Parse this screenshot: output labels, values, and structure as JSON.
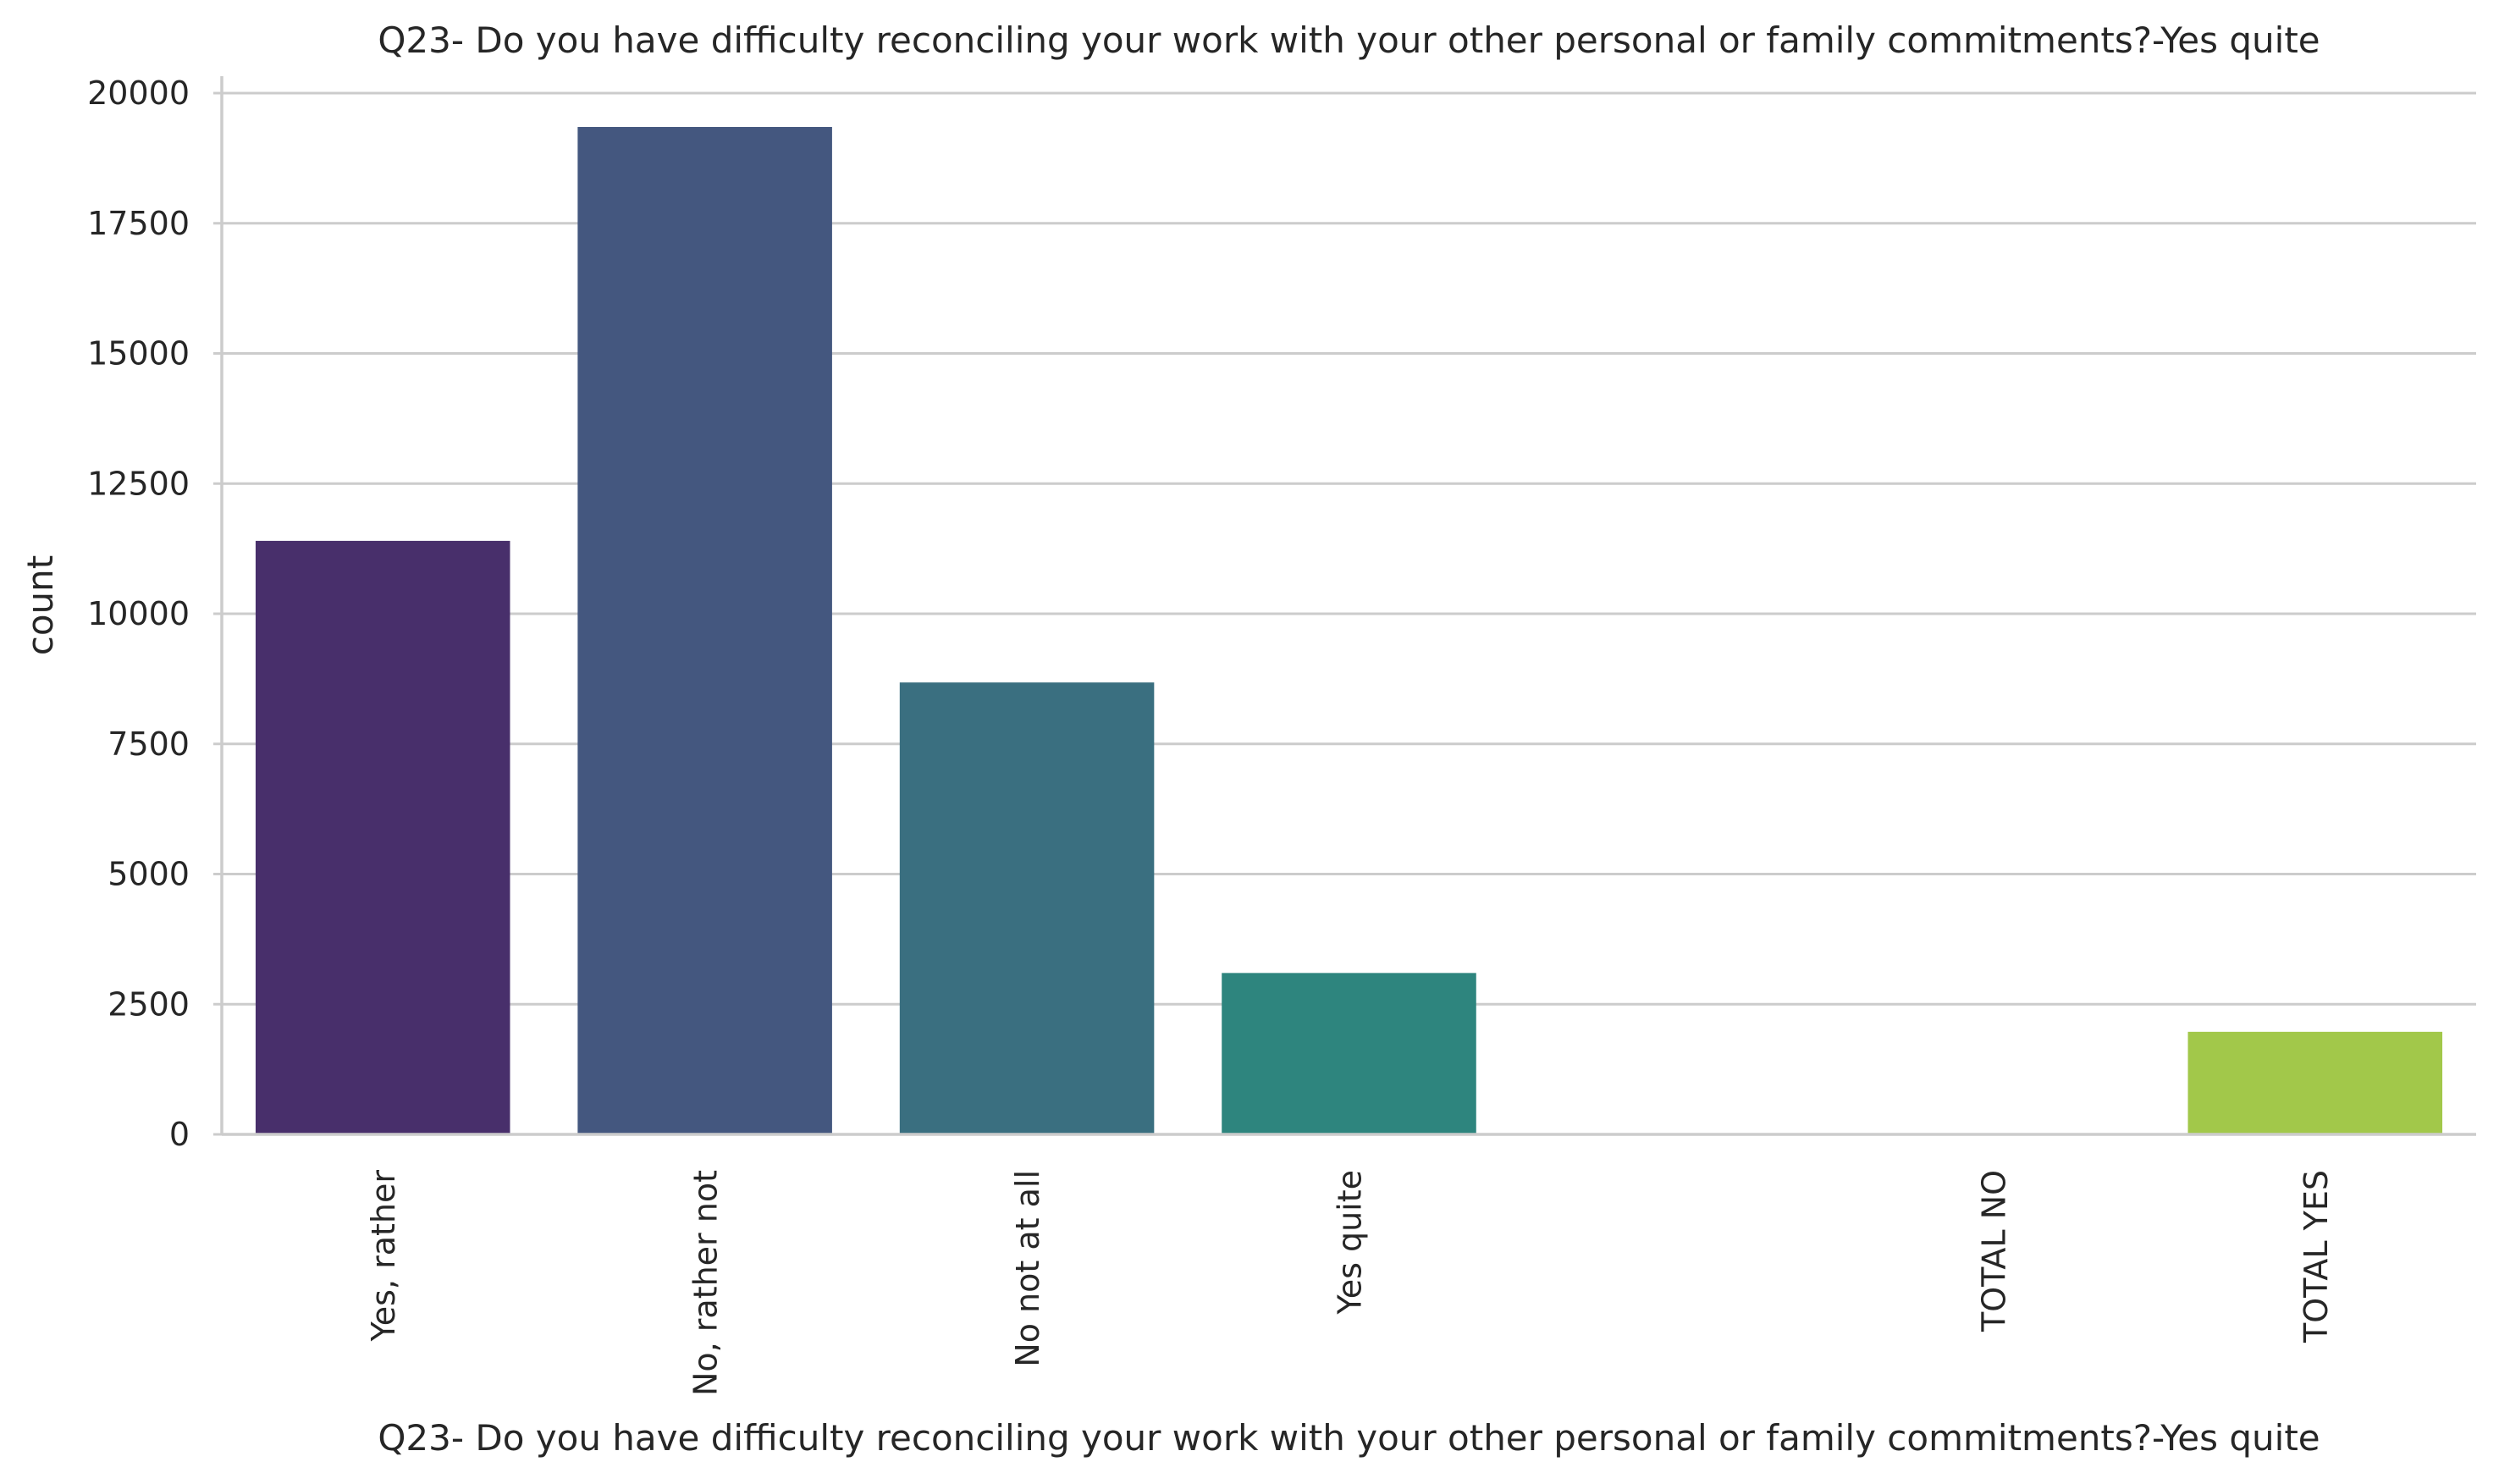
{
  "chart_data": {
    "type": "bar",
    "title": "Q23- Do you have difficulty reconciling your work with your other personal or family commitments?-Yes quite",
    "xlabel": "Q23- Do you have difficulty reconciling your work with your other personal or family commitments?-Yes quite",
    "ylabel": "count",
    "categories": [
      "Yes, rather",
      "No, rather not",
      "No not at all",
      "Yes quite",
      "",
      "TOTAL NO",
      "TOTAL YES"
    ],
    "values": [
      11400,
      19350,
      8680,
      3100,
      0,
      0,
      1970
    ],
    "colors": [
      "#482f6b",
      "#44577f",
      "#3a6f80",
      "#2e857e",
      "#3a9b6e",
      "#6fb25a",
      "#a2c84a"
    ],
    "ylim": [
      0,
      20000
    ],
    "yticks": [
      0,
      2500,
      5000,
      7500,
      10000,
      12500,
      15000,
      17500,
      20000
    ],
    "grid": true,
    "legend": "none"
  }
}
